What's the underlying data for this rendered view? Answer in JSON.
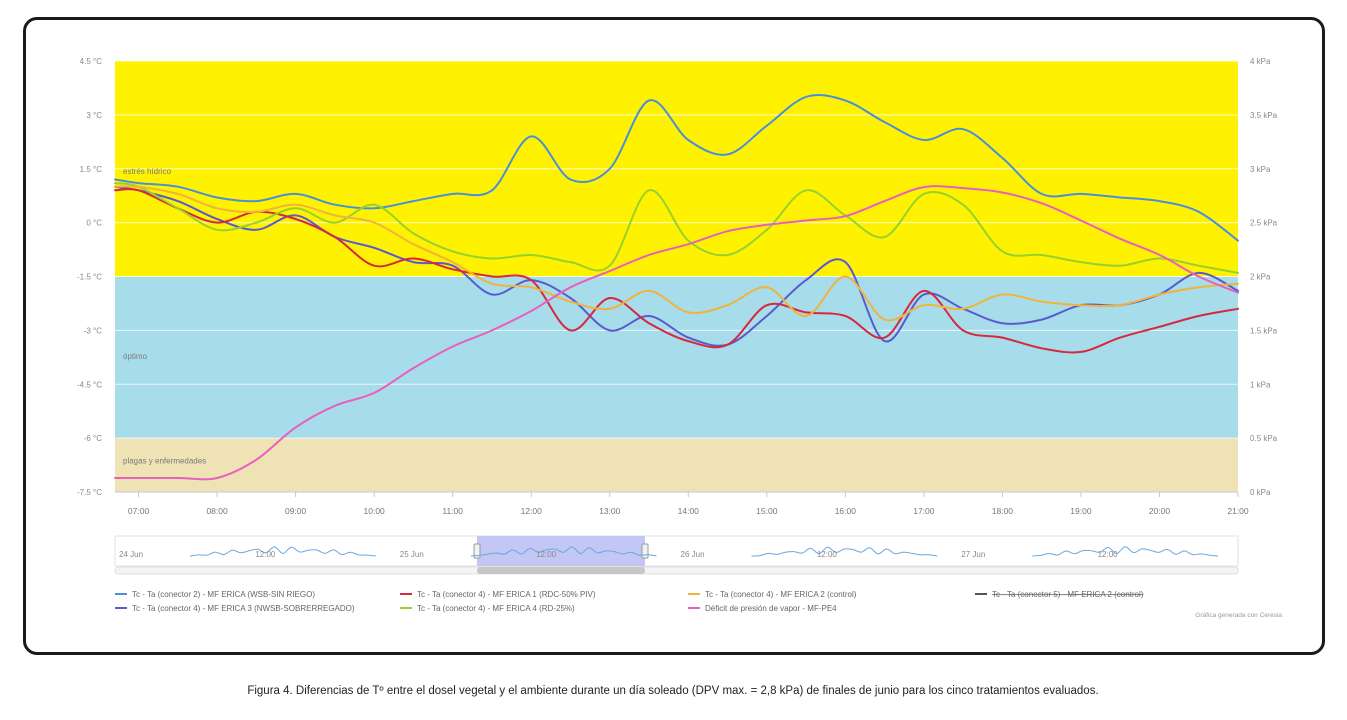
{
  "chart_data": {
    "type": "line",
    "left_axis": {
      "ticks": [
        "4.5 °C",
        "3 °C",
        "1.5 °C",
        "0 °C",
        "-1.5 °C",
        "-3 °C",
        "-4.5 °C",
        "-6 °C",
        "-7.5 °C"
      ],
      "range": [
        -7.5,
        4.5
      ]
    },
    "right_axis": {
      "ticks": [
        "4 kPa",
        "3.5 kPa",
        "3 kPa",
        "2.5 kPa",
        "2 kPa",
        "1.5 kPa",
        "1 kPa",
        "0.5 kPa",
        "0 kPa"
      ],
      "range": [
        0,
        4
      ]
    },
    "x_ticks": [
      "07:00",
      "08:00",
      "09:00",
      "10:00",
      "11:00",
      "12:00",
      "13:00",
      "14:00",
      "15:00",
      "16:00",
      "17:00",
      "18:00",
      "19:00",
      "20:00",
      "21:00"
    ],
    "x_range_hours": [
      6.7,
      21.0
    ],
    "bands": [
      {
        "label": "estrés hídrico",
        "from": -1.5,
        "to": 4.5,
        "color": "#FFF200"
      },
      {
        "label": "óptimo",
        "from": -6,
        "to": -1.5,
        "color": "#A7DCEA"
      },
      {
        "label": "plagas y enfermedades",
        "from": -7.5,
        "to": -6,
        "color": "#EFE2B5"
      }
    ],
    "x": [
      6.7,
      7.0,
      7.5,
      8.0,
      8.5,
      9.0,
      9.5,
      10.0,
      10.5,
      11.0,
      11.5,
      12.0,
      12.5,
      13.0,
      13.5,
      14.0,
      14.5,
      15.0,
      15.5,
      16.0,
      16.5,
      17.0,
      17.5,
      18.0,
      18.5,
      19.0,
      19.5,
      20.0,
      20.5,
      21.0
    ],
    "series": [
      {
        "name": "Tc - Ta (conector 2) - MF ERICA (WSB-SIN RIEGO)",
        "axis": "left",
        "color": "#4A90D9",
        "values": [
          1.2,
          1.1,
          1.0,
          0.7,
          0.6,
          0.8,
          0.5,
          0.4,
          0.6,
          0.8,
          0.9,
          2.4,
          1.2,
          1.5,
          3.4,
          2.3,
          1.9,
          2.7,
          3.5,
          3.4,
          2.8,
          2.3,
          2.6,
          1.8,
          0.8,
          0.8,
          0.7,
          0.6,
          0.3,
          -0.5
        ]
      },
      {
        "name": "Tc - Ta (conector 4) - MF ERICA 3 (NWSB-SOBRERREGADO)",
        "axis": "left",
        "color": "#5A5AD0",
        "values": [
          1.0,
          0.9,
          0.6,
          0.1,
          -0.2,
          0.2,
          -0.4,
          -0.7,
          -1.1,
          -1.2,
          -2.0,
          -1.6,
          -2.1,
          -3.0,
          -2.6,
          -3.2,
          -3.4,
          -2.6,
          -1.6,
          -1.1,
          -3.3,
          -2.0,
          -2.4,
          -2.8,
          -2.7,
          -2.3,
          -2.3,
          -2.0,
          -1.4,
          -1.9
        ]
      },
      {
        "name": "Tc - Ta (conector 4) - MF ERICA 1 (RDC-50% PIV)",
        "axis": "left",
        "color": "#D6283E",
        "values": [
          0.9,
          0.9,
          0.4,
          0.0,
          0.3,
          0.1,
          -0.4,
          -1.2,
          -1.0,
          -1.3,
          -1.5,
          -1.6,
          -3.0,
          -2.1,
          -2.8,
          -3.3,
          -3.4,
          -2.3,
          -2.5,
          -2.6,
          -3.2,
          -1.9,
          -3.0,
          -3.2,
          -3.5,
          -3.6,
          -3.2,
          -2.9,
          -2.6,
          -2.4
        ]
      },
      {
        "name": "Tc - Ta (conector 4) - MF ERICA 4 (RD-25%)",
        "axis": "left",
        "color": "#96D12F",
        "values": [
          1.1,
          1.0,
          0.4,
          -0.2,
          0.0,
          0.4,
          0.0,
          0.5,
          -0.3,
          -0.8,
          -1.0,
          -0.9,
          -1.1,
          -1.2,
          0.9,
          -0.5,
          -0.9,
          -0.2,
          0.9,
          0.2,
          -0.4,
          0.8,
          0.5,
          -0.8,
          -0.9,
          -1.1,
          -1.2,
          -1.0,
          -1.2,
          -1.4
        ]
      },
      {
        "name": "Tc - Ta (conector 4) - MF ERICA 2 (control)",
        "axis": "left",
        "color": "#F0B43C",
        "values": [
          1.0,
          1.0,
          0.8,
          0.4,
          0.3,
          0.5,
          0.2,
          0.0,
          -0.6,
          -1.1,
          -1.7,
          -1.8,
          -2.2,
          -2.4,
          -1.9,
          -2.5,
          -2.3,
          -1.8,
          -2.6,
          -1.5,
          -2.7,
          -2.3,
          -2.4,
          -2.0,
          -2.2,
          -2.3,
          -2.3,
          -2.0,
          -1.8,
          -1.7
        ]
      },
      {
        "name": "Déficit de presión de vapor - MF-PE4",
        "axis": "right",
        "color": "#E85FBE",
        "values": [
          0.13,
          0.13,
          0.13,
          0.13,
          0.3,
          0.6,
          0.8,
          0.92,
          1.15,
          1.35,
          1.5,
          1.68,
          1.9,
          2.05,
          2.2,
          2.3,
          2.42,
          2.48,
          2.52,
          2.56,
          2.7,
          2.83,
          2.82,
          2.78,
          2.68,
          2.52,
          2.35,
          2.2,
          2.0,
          1.85
        ]
      }
    ],
    "legend": [
      {
        "label": "Tc - Ta (conector 2) - MF ERICA (WSB-SIN RIEGO)",
        "color": "#4A90D9",
        "strike": false
      },
      {
        "label": "Tc - Ta (conector 4) - MF ERICA 1 (RDC-50% PIV)",
        "color": "#D6283E",
        "strike": false
      },
      {
        "label": "Tc - Ta (conector 4) - MF ERICA 2 (control)",
        "color": "#F0B43C",
        "strike": false
      },
      {
        "label": "Tc - Ta (conector 5) - MF ERICA 2 (control)",
        "color": "#555555",
        "strike": true
      },
      {
        "label": "Tc - Ta (conector 4) - MF ERICA 3 (NWSB-SOBRERREGADO)",
        "color": "#5A5AD0",
        "strike": false
      },
      {
        "label": "Tc - Ta (conector 4) - MF ERICA 4 (RD-25%)",
        "color": "#96D12F",
        "strike": false
      },
      {
        "label": "Déficit de presión de vapor - MF-PE4",
        "color": "#E85FBE",
        "strike": false
      }
    ],
    "navigator_labels": [
      "24 Jun",
      "12:00",
      "25 Jun",
      "12:00",
      "26 Jun",
      "12:00",
      "27 Jun",
      "12:00"
    ],
    "credit": "Gráfica generada con Ceresia",
    "caption": "Figura 4. Diferencias de Tº entre el dosel vegetal y el ambiente durante un día soleado (DPV max. = 2,8 kPa) de finales de junio para los cinco tratamientos evaluados."
  }
}
